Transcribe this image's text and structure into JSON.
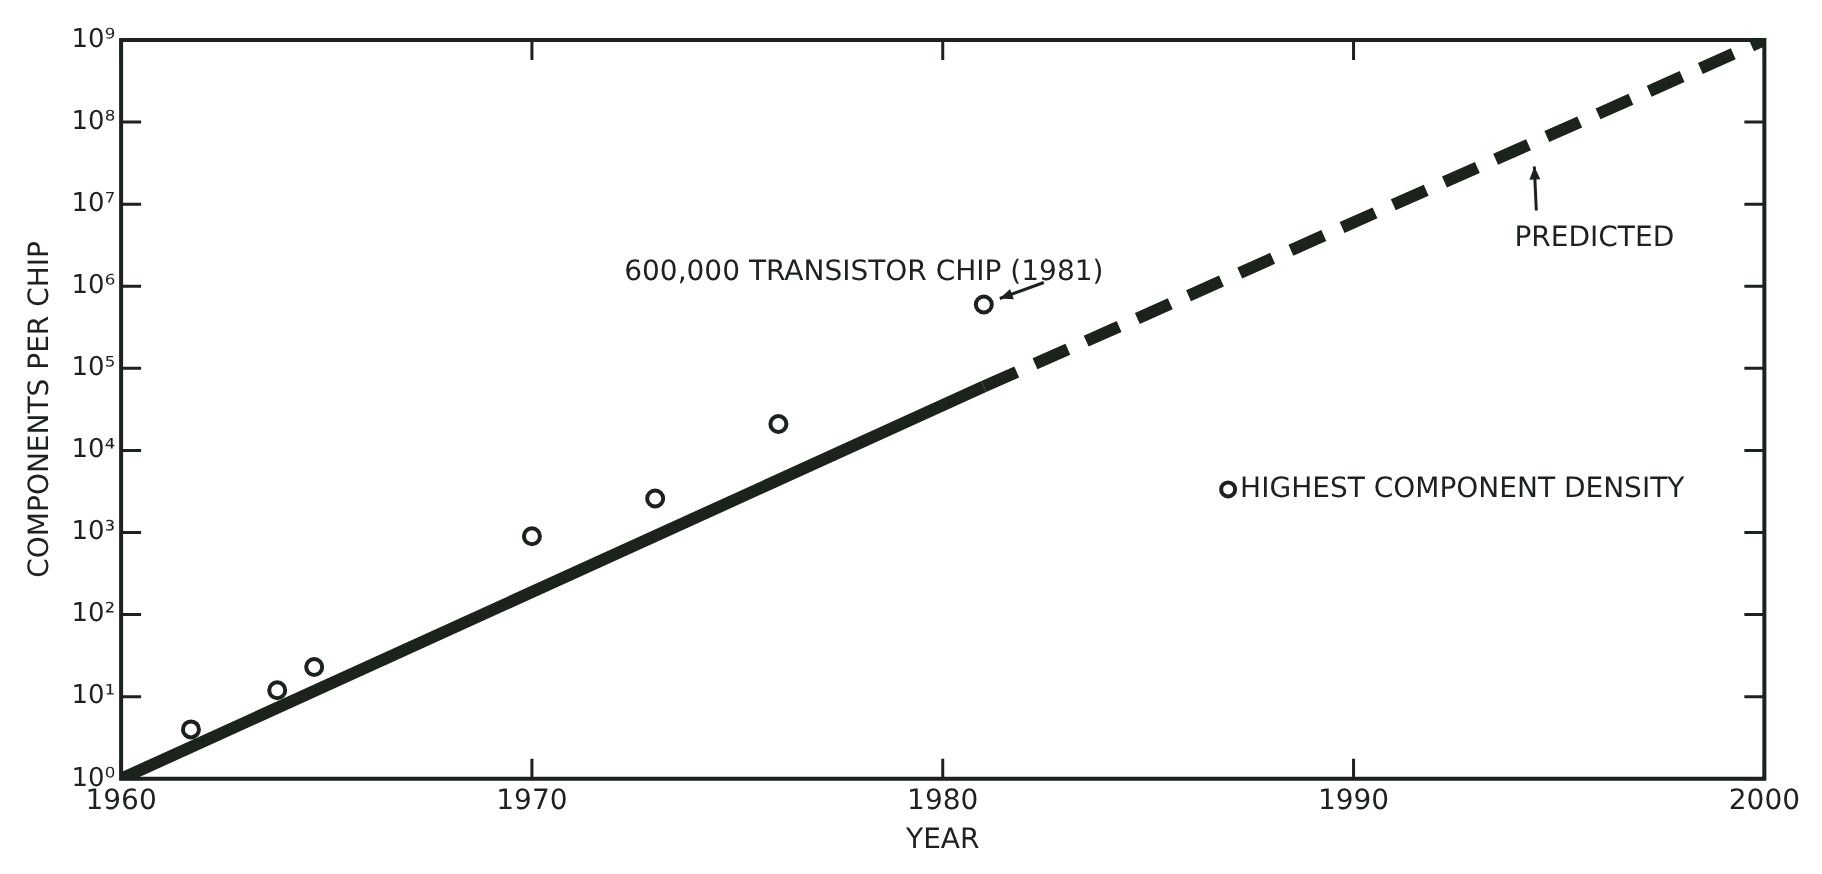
{
  "chart_data": {
    "type": "scatter",
    "xlabel": "YEAR",
    "ylabel": "COMPONENTS PER CHIP",
    "log": "y",
    "xlim": [
      1960,
      2000
    ],
    "xticks": [
      1960,
      1970,
      1980,
      1990,
      2000
    ],
    "ylim": [
      1,
      1000000000
    ],
    "yticks": [
      {
        "value": 1,
        "label": "10⁰"
      },
      {
        "value": 10,
        "label": "10¹"
      },
      {
        "value": 100,
        "label": "10²"
      },
      {
        "value": 1000,
        "label": "10³"
      },
      {
        "value": 10000,
        "label": "10⁴"
      },
      {
        "value": 100000,
        "label": "10⁵"
      },
      {
        "value": 1000000,
        "label": "10⁶"
      },
      {
        "value": 10000000,
        "label": "10⁷"
      },
      {
        "value": 100000000,
        "label": "10⁸"
      },
      {
        "value": 1000000000,
        "label": "10⁹"
      }
    ],
    "grid": false,
    "legend": "right",
    "series": [
      {
        "name": "HIGHEST COMPONENT DENSITY",
        "marker": "circle",
        "color": "#1c221c",
        "x": [
          1961.7,
          1963.8,
          1964.7,
          1970,
          1973,
          1976,
          1981
        ],
        "values": [
          4,
          12,
          23,
          900,
          2600,
          21000,
          600000
        ]
      },
      {
        "type": "line",
        "line_style": "solid",
        "marker": "none",
        "color": "#1c221c",
        "x": [
          1960,
          1981
        ],
        "values": [
          1,
          60000
        ]
      },
      {
        "type": "line",
        "line_style": "dashed",
        "marker": "none",
        "color": "#1c221c",
        "x": [
          1981,
          2000
        ],
        "values": [
          60000,
          1000000000
        ]
      }
    ],
    "annotations": [
      {
        "text": "600,000 TRANSISTOR CHIP (1981)",
        "x": 1981,
        "y": 600000
      },
      {
        "text": "PREDICTED",
        "x": 1994.4,
        "y": 45000000
      }
    ]
  }
}
